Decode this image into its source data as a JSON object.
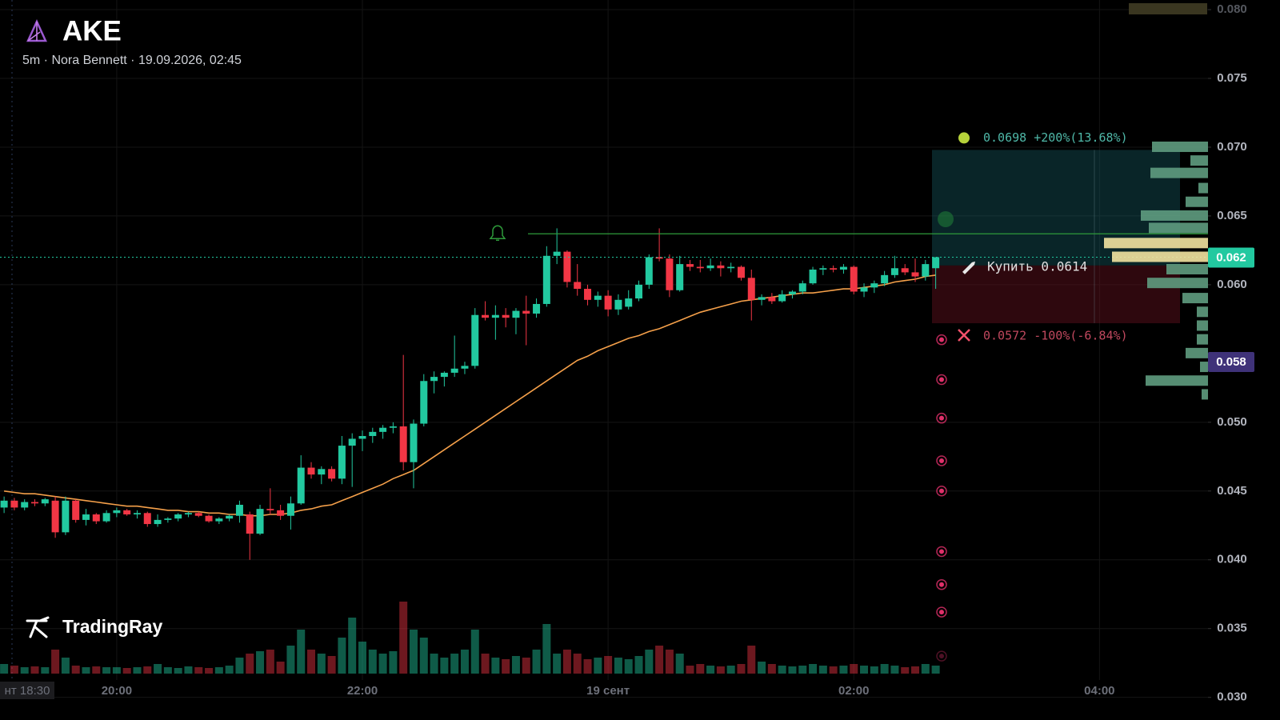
{
  "header": {
    "symbol": "AKE",
    "subtitle": "5m · Nora Bennett · 19.09.2026, 02:45",
    "brand": "TradingRay",
    "cursor_time_label": "нт 18:30",
    "marker_tag": "0.058"
  },
  "chart_data": {
    "type": "candlestick",
    "x": [
      "19:05",
      "19:10",
      "19:15",
      "19:20",
      "19:25",
      "19:30",
      "19:35",
      "19:40",
      "19:45",
      "19:50",
      "19:55",
      "20:00",
      "20:05",
      "20:10",
      "20:15",
      "20:20",
      "20:25",
      "20:30",
      "20:35",
      "20:40",
      "20:45",
      "20:50",
      "20:55",
      "21:00",
      "21:05",
      "21:10",
      "21:15",
      "21:20",
      "21:25",
      "21:30",
      "21:35",
      "21:40",
      "21:45",
      "21:50",
      "21:55",
      "22:00",
      "22:05",
      "22:10",
      "22:15",
      "22:20",
      "22:25",
      "22:30",
      "22:35",
      "22:40",
      "22:45",
      "22:50",
      "22:55",
      "23:00",
      "23:05",
      "23:10",
      "23:15",
      "23:20",
      "23:25",
      "23:30",
      "23:35",
      "23:40",
      "23:45",
      "23:50",
      "23:55",
      "00:00",
      "00:05",
      "00:10",
      "00:15",
      "00:20",
      "00:25",
      "00:30",
      "00:35",
      "00:40",
      "00:45",
      "00:50",
      "00:55",
      "01:00",
      "01:05",
      "01:10",
      "01:15",
      "01:20",
      "01:25",
      "01:30",
      "01:35",
      "01:40",
      "01:45",
      "01:50",
      "01:55",
      "02:00",
      "02:05",
      "02:10",
      "02:15",
      "02:20",
      "02:25",
      "02:30",
      "02:35",
      "02:40"
    ],
    "open": [
      0.0438,
      0.0443,
      0.0438,
      0.0442,
      0.0441,
      0.0443,
      0.042,
      0.0443,
      0.0429,
      0.0433,
      0.0428,
      0.0434,
      0.0436,
      0.0433,
      0.0434,
      0.0426,
      0.0429,
      0.043,
      0.0433,
      0.0434,
      0.0432,
      0.0428,
      0.043,
      0.0432,
      0.0433,
      0.0419,
      0.0437,
      0.0436,
      0.0432,
      0.0441,
      0.0467,
      0.0462,
      0.0466,
      0.0459,
      0.0483,
      0.0488,
      0.049,
      0.0493,
      0.0496,
      0.0497,
      0.0471,
      0.0499,
      0.053,
      0.0533,
      0.0536,
      0.0539,
      0.0541,
      0.0578,
      0.0576,
      0.0578,
      0.0576,
      0.0581,
      0.0579,
      0.0586,
      0.0621,
      0.0624,
      0.0602,
      0.0597,
      0.0589,
      0.0592,
      0.0582,
      0.0584,
      0.059,
      0.06,
      0.062,
      0.0619,
      0.0596,
      0.0615,
      0.0613,
      0.0612,
      0.0614,
      0.0612,
      0.0613,
      0.0605,
      0.0589,
      0.0591,
      0.0588,
      0.0593,
      0.0595,
      0.0601,
      0.0611,
      0.0612,
      0.0611,
      0.0613,
      0.0595,
      0.0598,
      0.0601,
      0.0607,
      0.0612,
      0.0609,
      0.0606,
      0.0612
    ],
    "high": [
      0.0446,
      0.0445,
      0.0444,
      0.0444,
      0.0445,
      0.0446,
      0.0446,
      0.0444,
      0.0437,
      0.0434,
      0.0436,
      0.0438,
      0.0437,
      0.0436,
      0.0435,
      0.0433,
      0.0431,
      0.0434,
      0.0435,
      0.0435,
      0.0433,
      0.0431,
      0.0433,
      0.0443,
      0.0435,
      0.044,
      0.0452,
      0.044,
      0.0446,
      0.0476,
      0.0471,
      0.0468,
      0.0468,
      0.049,
      0.0492,
      0.0494,
      0.0496,
      0.0498,
      0.05,
      0.0549,
      0.0502,
      0.0535,
      0.0537,
      0.0537,
      0.0563,
      0.0544,
      0.0583,
      0.0588,
      0.0585,
      0.0583,
      0.0583,
      0.0592,
      0.059,
      0.0628,
      0.0641,
      0.0625,
      0.0615,
      0.06,
      0.0595,
      0.0596,
      0.0593,
      0.0596,
      0.0603,
      0.0622,
      0.0641,
      0.0622,
      0.0621,
      0.0618,
      0.0618,
      0.0619,
      0.0617,
      0.0616,
      0.0614,
      0.0611,
      0.0593,
      0.0594,
      0.0596,
      0.0596,
      0.0603,
      0.0613,
      0.0614,
      0.0614,
      0.0615,
      0.0614,
      0.0601,
      0.0603,
      0.061,
      0.0621,
      0.0615,
      0.0619,
      0.0618,
      0.062
    ],
    "low": [
      0.0434,
      0.0436,
      0.0436,
      0.0439,
      0.0439,
      0.0416,
      0.0418,
      0.0427,
      0.0425,
      0.0426,
      0.0427,
      0.0431,
      0.0432,
      0.043,
      0.0424,
      0.0424,
      0.0427,
      0.0428,
      0.0431,
      0.0431,
      0.0427,
      0.0426,
      0.0428,
      0.0427,
      0.04,
      0.0418,
      0.0433,
      0.0429,
      0.0422,
      0.044,
      0.0459,
      0.0455,
      0.0457,
      0.0455,
      0.0453,
      0.0479,
      0.0485,
      0.0488,
      0.0492,
      0.0465,
      0.0452,
      0.0497,
      0.0521,
      0.0526,
      0.0533,
      0.0535,
      0.0539,
      0.0574,
      0.056,
      0.0569,
      0.0564,
      0.0556,
      0.0576,
      0.0584,
      0.0615,
      0.0598,
      0.0592,
      0.0585,
      0.0584,
      0.0577,
      0.0578,
      0.0582,
      0.0588,
      0.0597,
      0.0617,
      0.0591,
      0.0595,
      0.061,
      0.0609,
      0.061,
      0.0606,
      0.0609,
      0.0603,
      0.0574,
      0.0585,
      0.0586,
      0.0587,
      0.059,
      0.0593,
      0.06,
      0.0607,
      0.0609,
      0.0608,
      0.0593,
      0.0591,
      0.0594,
      0.0599,
      0.0605,
      0.0607,
      0.0602,
      0.0603,
      0.0597
    ],
    "close": [
      0.0443,
      0.0438,
      0.0442,
      0.0441,
      0.0444,
      0.042,
      0.0443,
      0.0429,
      0.0433,
      0.0428,
      0.0434,
      0.0436,
      0.0433,
      0.0434,
      0.0426,
      0.0429,
      0.043,
      0.0433,
      0.0434,
      0.0432,
      0.0428,
      0.043,
      0.0432,
      0.044,
      0.0419,
      0.0437,
      0.0436,
      0.0432,
      0.0441,
      0.0467,
      0.0462,
      0.0466,
      0.0459,
      0.0483,
      0.0488,
      0.049,
      0.0493,
      0.0496,
      0.0497,
      0.0471,
      0.0499,
      0.053,
      0.0533,
      0.0536,
      0.0539,
      0.0541,
      0.0578,
      0.0576,
      0.0578,
      0.0576,
      0.0581,
      0.0579,
      0.0586,
      0.0621,
      0.0624,
      0.0602,
      0.0597,
      0.0589,
      0.0592,
      0.0582,
      0.0589,
      0.059,
      0.06,
      0.062,
      0.0619,
      0.0596,
      0.0615,
      0.0613,
      0.0612,
      0.0614,
      0.0612,
      0.0613,
      0.0605,
      0.0589,
      0.0591,
      0.0588,
      0.0593,
      0.0595,
      0.0601,
      0.0611,
      0.0612,
      0.0611,
      0.0613,
      0.0595,
      0.0598,
      0.0601,
      0.0607,
      0.0612,
      0.0609,
      0.0606,
      0.0615,
      0.062
    ],
    "volume": [
      12,
      10,
      8,
      9,
      8,
      30,
      20,
      10,
      8,
      9,
      8,
      8,
      7,
      8,
      9,
      12,
      8,
      7,
      9,
      8,
      7,
      8,
      10,
      20,
      25,
      28,
      30,
      15,
      35,
      55,
      30,
      25,
      22,
      45,
      70,
      40,
      30,
      25,
      28,
      90,
      55,
      45,
      25,
      20,
      25,
      30,
      55,
      25,
      20,
      18,
      22,
      20,
      30,
      62,
      25,
      30,
      25,
      18,
      20,
      22,
      20,
      18,
      22,
      30,
      35,
      30,
      25,
      10,
      12,
      10,
      9,
      10,
      12,
      35,
      15,
      12,
      10,
      9,
      10,
      12,
      10,
      9,
      10,
      12,
      10,
      9,
      12,
      10,
      8,
      9,
      12,
      10
    ],
    "up_color": "#22c9a0",
    "down_color": "#f23645",
    "moving_average": {
      "color": "#f5a04a",
      "values": [
        0.045,
        0.0449,
        0.0448,
        0.0448,
        0.0447,
        0.0446,
        0.0445,
        0.0444,
        0.0443,
        0.0442,
        0.0441,
        0.044,
        0.0439,
        0.0439,
        0.0438,
        0.0437,
        0.0436,
        0.0436,
        0.0435,
        0.0435,
        0.0434,
        0.0434,
        0.0433,
        0.0433,
        0.0432,
        0.0432,
        0.0433,
        0.0433,
        0.0434,
        0.0436,
        0.0437,
        0.0439,
        0.044,
        0.0443,
        0.0446,
        0.0449,
        0.0452,
        0.0455,
        0.0459,
        0.0462,
        0.0465,
        0.047,
        0.0475,
        0.048,
        0.0485,
        0.049,
        0.0495,
        0.05,
        0.0505,
        0.051,
        0.0515,
        0.052,
        0.0525,
        0.053,
        0.0535,
        0.054,
        0.0545,
        0.0548,
        0.0552,
        0.0555,
        0.0558,
        0.0561,
        0.0563,
        0.0566,
        0.0568,
        0.0571,
        0.0574,
        0.0577,
        0.058,
        0.0582,
        0.0584,
        0.0586,
        0.0588,
        0.0589,
        0.059,
        0.0591,
        0.0592,
        0.0593,
        0.0594,
        0.0594,
        0.0595,
        0.0596,
        0.0597,
        0.0597,
        0.0598,
        0.0599,
        0.06,
        0.0602,
        0.0603,
        0.0604,
        0.0606,
        0.0607
      ]
    },
    "xlim": [
      "19:03",
      "04:53"
    ],
    "xticks": [
      "20:00",
      "22:00",
      {
        "value": "00:00",
        "label": "19 сент"
      },
      "02:00",
      "04:00"
    ],
    "ylim": [
      0.0294,
      0.0807
    ],
    "yticks": [
      {
        "value": 0.03,
        "label": "0.030"
      },
      {
        "value": 0.035,
        "label": "0.035"
      },
      {
        "value": 0.04,
        "label": "0.040"
      },
      {
        "value": 0.045,
        "label": "0.045"
      },
      {
        "value": 0.05,
        "label": "0.050"
      },
      {
        "value": 0.06,
        "label": "0.060"
      },
      {
        "value": 0.065,
        "label": "0.065"
      },
      {
        "value": 0.07,
        "label": "0.070"
      },
      {
        "value": 0.075,
        "label": "0.075"
      },
      {
        "value": 0.08,
        "label": "0.080"
      }
    ],
    "grid": true,
    "last_price": {
      "value": 0.062,
      "label": "0.062",
      "color": "#22c9a0"
    },
    "alert_level": {
      "value": 0.0637,
      "color": "#2e9b3a"
    },
    "position": {
      "take_profit": {
        "value": 0.0698,
        "label": "0.0698 +200%(13.68%)"
      },
      "entry": {
        "value": 0.0614,
        "label": "Купить 0.0614"
      },
      "stop_loss": {
        "value": 0.0572,
        "label": "0.0572 -100%(-6.84%)"
      }
    },
    "signal_markers": {
      "color": "#e0306a",
      "values": [
        0.056,
        0.0531,
        0.0503,
        0.0472,
        0.045,
        0.0406,
        0.0382,
        0.0362,
        0.033
      ]
    },
    "volume_profile": {
      "prices": [
        0.07,
        0.069,
        0.0681,
        0.067,
        0.066,
        0.065,
        0.0641,
        0.063,
        0.062,
        0.0611,
        0.0601,
        0.059,
        0.058,
        0.057,
        0.056,
        0.055,
        0.054,
        0.053,
        0.052
      ],
      "sizes": [
        70,
        22,
        72,
        12,
        28,
        84,
        74,
        130,
        120,
        52,
        76,
        32,
        14,
        14,
        14,
        28,
        10,
        78,
        8
      ],
      "colors": [
        "#5f9c7f",
        "#5f9c7f",
        "#5f9c7f",
        "#5f9c7f",
        "#5f9c7f",
        "#5f9c7f",
        "#5f9c7f",
        "#f3e3a0",
        "#f3e3a0",
        "#5f9c7f",
        "#5f9c7f",
        "#5f9c7f",
        "#5f9c7f",
        "#5f9c7f",
        "#5f9c7f",
        "#5f9c7f",
        "#5f9c7f",
        "#5f9c7f",
        "#5f9c7f"
      ]
    }
  }
}
